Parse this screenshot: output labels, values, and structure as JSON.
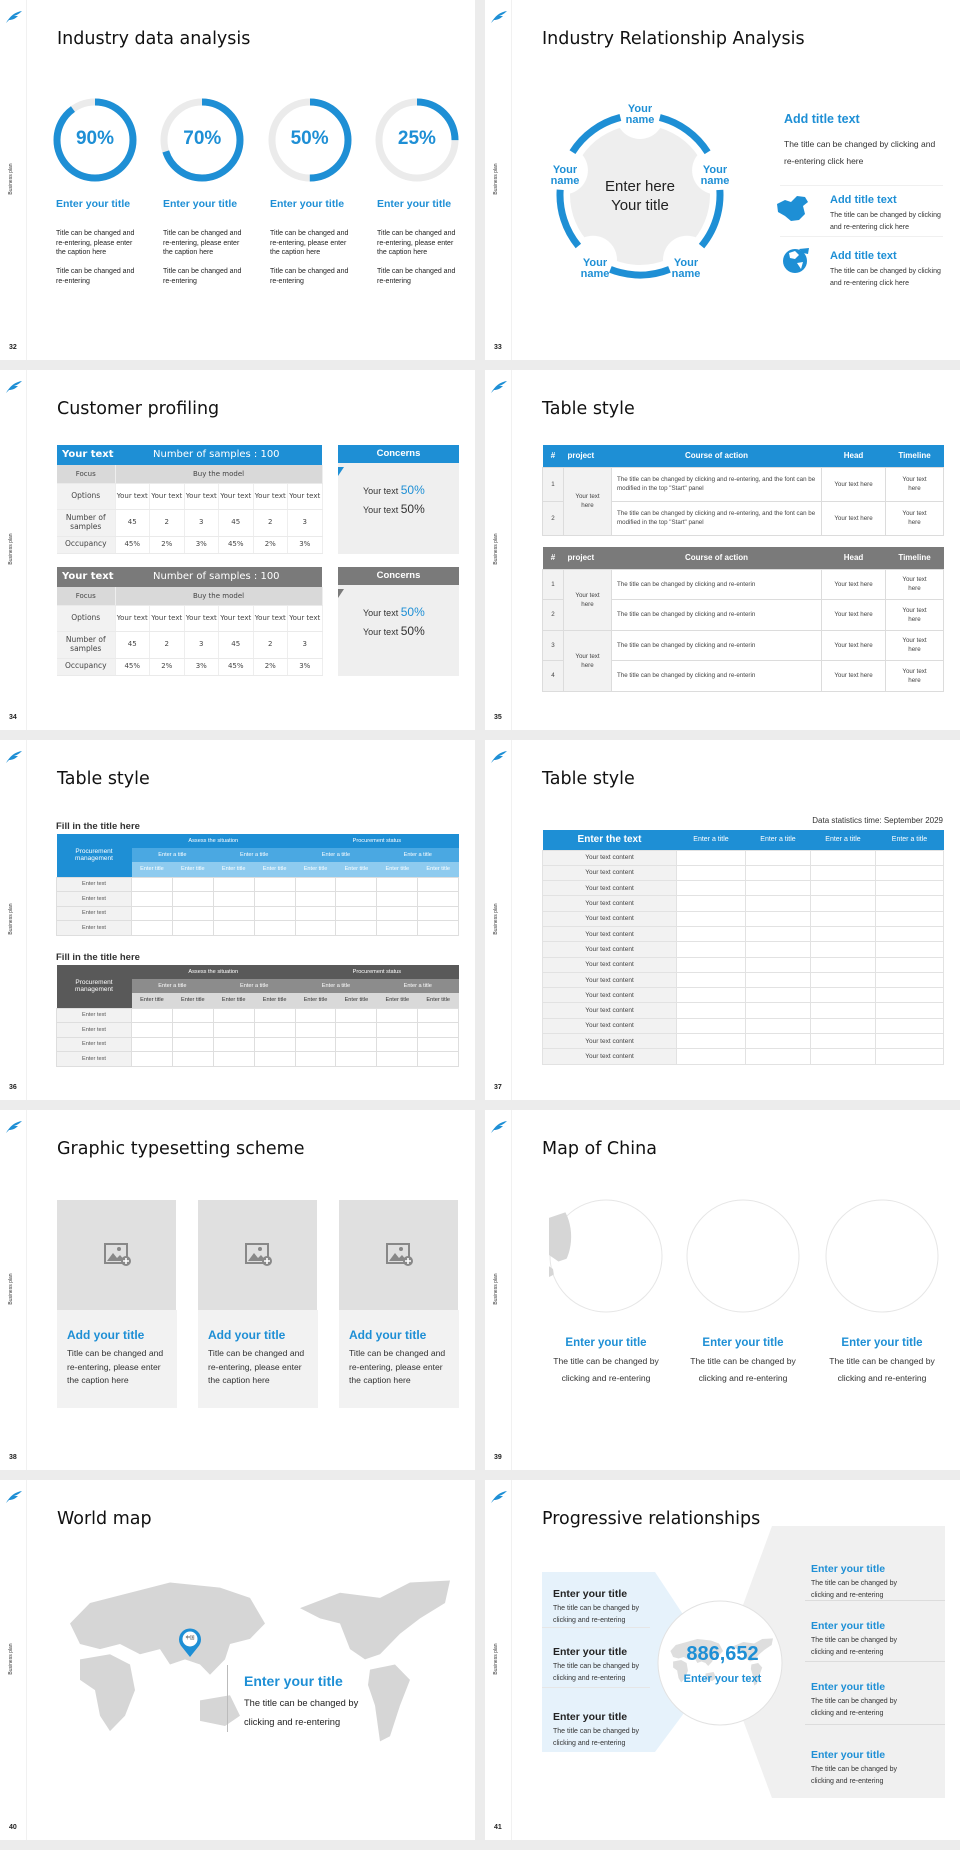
{
  "common": {
    "sidebar_label": "Business plan",
    "logo": "feather-logo"
  },
  "colors": {
    "accent": "#1e8fd5",
    "dark_header": "#7a7a7a",
    "panel_gray": "#f0f0f0",
    "map_gray": "#d6d6d6"
  },
  "slides": {
    "s32": {
      "page": "32",
      "title": "Industry data analysis",
      "items": [
        {
          "percent": "90%",
          "value": 90,
          "title": "Enter your title",
          "text1": "Title can be changed and re-entering, please enter the caption here",
          "text2": "Title can be changed and re-entering"
        },
        {
          "percent": "70%",
          "value": 70,
          "title": "Enter your title",
          "text1": "Title can be changed and re-entering, please enter the caption here",
          "text2": "Title can be changed and re-entering"
        },
        {
          "percent": "50%",
          "value": 50,
          "title": "Enter your title",
          "text1": "Title can be changed and re-entering, please enter the caption here",
          "text2": "Title can be changed and re-entering"
        },
        {
          "percent": "25%",
          "value": 25,
          "title": "Enter your title",
          "text1": "Title can be changed and re-entering, please enter the caption here",
          "text2": "Title can be changed and re-entering"
        }
      ]
    },
    "s33": {
      "page": "33",
      "title": "Industry Relationship Analysis",
      "center_line1": "Enter here",
      "center_line2": "Your title",
      "names": [
        "Your name",
        "Your name",
        "Your name",
        "Your name",
        "Your name"
      ],
      "main_title": "Add title text",
      "main_text": "The title can be changed by clicking and re-entering click here",
      "items": [
        {
          "icon": "china-map-icon",
          "title": "Add title text",
          "text": "The title can be changed by clicking and re-entering click here"
        },
        {
          "icon": "globe-icon",
          "title": "Add title text",
          "text": "The title can be changed by clicking and re-entering click here"
        }
      ]
    },
    "s34": {
      "page": "34",
      "title": "Customer profiling",
      "tables": [
        {
          "style": "blue",
          "head_left": "Your text",
          "head_right": "Number of samples : 100",
          "focus": "Focus",
          "focus_value": "Buy the model",
          "rows": [
            {
              "label": "Options",
              "cells": [
                "Your text",
                "Your text",
                "Your text",
                "Your text",
                "Your text",
                "Your text"
              ]
            },
            {
              "label": "Number of samples",
              "cells": [
                "45",
                "2",
                "3",
                "45",
                "2",
                "3"
              ]
            },
            {
              "label": "Occupancy",
              "cells": [
                "45%",
                "2%",
                "3%",
                "45%",
                "2%",
                "3%"
              ]
            }
          ],
          "concerns": {
            "title": "Concerns",
            "line1_text": "Your text",
            "line1_value": "50%",
            "line2_text": "Your text",
            "line2_value": "50%"
          }
        },
        {
          "style": "gray",
          "head_left": "Your text",
          "head_right": "Number of samples : 100",
          "focus": "Focus",
          "focus_value": "Buy the model",
          "rows": [
            {
              "label": "Options",
              "cells": [
                "Your text",
                "Your text",
                "Your text",
                "Your text",
                "Your text",
                "Your text"
              ]
            },
            {
              "label": "Number of samples",
              "cells": [
                "45",
                "2",
                "3",
                "45",
                "2",
                "3"
              ]
            },
            {
              "label": "Occupancy",
              "cells": [
                "45%",
                "2%",
                "3%",
                "45%",
                "2%",
                "3%"
              ]
            }
          ],
          "concerns": {
            "title": "Concerns",
            "line1_text": "Your text",
            "line1_value": "50%",
            "line2_text": "Your text",
            "line2_value": "50%"
          }
        }
      ]
    },
    "s35": {
      "page": "35",
      "title": "Table style",
      "columns": [
        "#",
        "project",
        "Course of action",
        "Head",
        "Timeline"
      ],
      "tables": [
        {
          "style": "blue",
          "groups": [
            {
              "project": "Your text here",
              "rows": [
                {
                  "num": "1",
                  "action": "The title can be changed by clicking and re-entering, and the font can be modified in the top \"Start\" panel",
                  "head": "Your text here",
                  "timeline": "Your text here"
                },
                {
                  "num": "2",
                  "action": "The title can be changed by clicking and re-entering, and the font can be modified in the top \"Start\" panel",
                  "head": "Your text here",
                  "timeline": "Your text here"
                }
              ]
            }
          ]
        },
        {
          "style": "gray",
          "groups": [
            {
              "project": "Your text here",
              "rows": [
                {
                  "num": "1",
                  "action": "The title can be changed by clicking and re-enterin",
                  "head": "Your text here",
                  "timeline": "Your text here"
                },
                {
                  "num": "2",
                  "action": "The title can be changed by clicking and re-enterin",
                  "head": "Your text here",
                  "timeline": "Your text here"
                }
              ]
            },
            {
              "project": "Your text here",
              "rows": [
                {
                  "num": "3",
                  "action": "The title can be changed by clicking and re-enterin",
                  "head": "Your text here",
                  "timeline": "Your text here"
                },
                {
                  "num": "4",
                  "action": "The title can be changed by clicking and re-enterin",
                  "head": "Your text here",
                  "timeline": "Your text here"
                }
              ]
            }
          ]
        }
      ]
    },
    "s36": {
      "page": "36",
      "title": "Table style",
      "tables": [
        {
          "style": "blue",
          "subtitle": "Fill in the title here",
          "corner": "Procurement management",
          "groups": [
            "Assess the situation",
            "Procurement status"
          ],
          "subgroups": [
            "Enter a title",
            "Enter a title",
            "Enter a title",
            "Enter a title"
          ],
          "columns": [
            "Enter title",
            "Enter title",
            "Enter title",
            "Enter title",
            "Enter title",
            "Enter title",
            "Enter title",
            "Enter title"
          ],
          "rows": [
            "Enter text",
            "Enter text",
            "Enter text",
            "Enter text"
          ]
        },
        {
          "style": "gray",
          "subtitle": "Fill in the title here",
          "corner": "Procurement management",
          "groups": [
            "Assess the situation",
            "Procurement status"
          ],
          "subgroups": [
            "Enter a title",
            "Enter a title",
            "Enter a title",
            "Enter a title"
          ],
          "columns": [
            "Enter title",
            "Enter title",
            "Enter title",
            "Enter title",
            "Enter title",
            "Enter title",
            "Enter title",
            "Enter title"
          ],
          "rows": [
            "Enter text",
            "Enter text",
            "Enter text",
            "Enter text"
          ]
        }
      ]
    },
    "s37": {
      "page": "37",
      "title": "Table style",
      "stat_time": "Data statistics time: September 2029",
      "columns": [
        "Enter the text",
        "Enter a title",
        "Enter a title",
        "Enter a title",
        "Enter a title"
      ],
      "rows": [
        "Your text content",
        "Your text content",
        "Your text content",
        "Your text content",
        "Your text content",
        "Your text content",
        "Your text content",
        "Your text content",
        "Your text content",
        "Your text content",
        "Your text content",
        "Your text content",
        "Your text content",
        "Your text content"
      ]
    },
    "s38": {
      "page": "38",
      "title": "Graphic typesetting scheme",
      "cards": [
        {
          "title": "Add your title",
          "text": "Title can be changed and re-entering, please enter the caption here"
        },
        {
          "title": "Add your title",
          "text": "Title can be changed and re-entering, please enter the caption here"
        },
        {
          "title": "Add your title",
          "text": "Title can be changed and re-entering, please enter the caption here"
        }
      ]
    },
    "s39": {
      "page": "39",
      "title": "Map of China",
      "items": [
        {
          "title": "Enter your title",
          "text": "The title can be changed by clicking and re-entering"
        },
        {
          "title": "Enter your title",
          "text": "The title can be changed by clicking and re-entering"
        },
        {
          "title": "Enter your title",
          "text": "The title can be changed by clicking and re-entering"
        }
      ]
    },
    "s40": {
      "page": "40",
      "title": "World map",
      "pin_label": "中国",
      "callout_title": "Enter your title",
      "callout_text": "The title can be changed by clicking and re-entering"
    },
    "s41": {
      "page": "41",
      "title": "Progressive relationships",
      "number": "886,652",
      "center_text": "Enter your text",
      "left_items": [
        {
          "title": "Enter your title",
          "text": "The title can be changed by clicking and re-entering"
        },
        {
          "title": "Enter your title",
          "text": "The title can be changed by clicking and re-entering"
        },
        {
          "title": "Enter your title",
          "text": "The title can be changed by clicking and re-entering"
        }
      ],
      "right_items": [
        {
          "title": "Enter your title",
          "text": "The title can be changed by clicking and re-entering"
        },
        {
          "title": "Enter your title",
          "text": "The title can be changed by clicking and re-entering"
        },
        {
          "title": "Enter your title",
          "text": "The title can be changed by clicking and re-entering"
        },
        {
          "title": "Enter your title",
          "text": "The title can be changed by clicking and re-entering"
        }
      ]
    }
  }
}
